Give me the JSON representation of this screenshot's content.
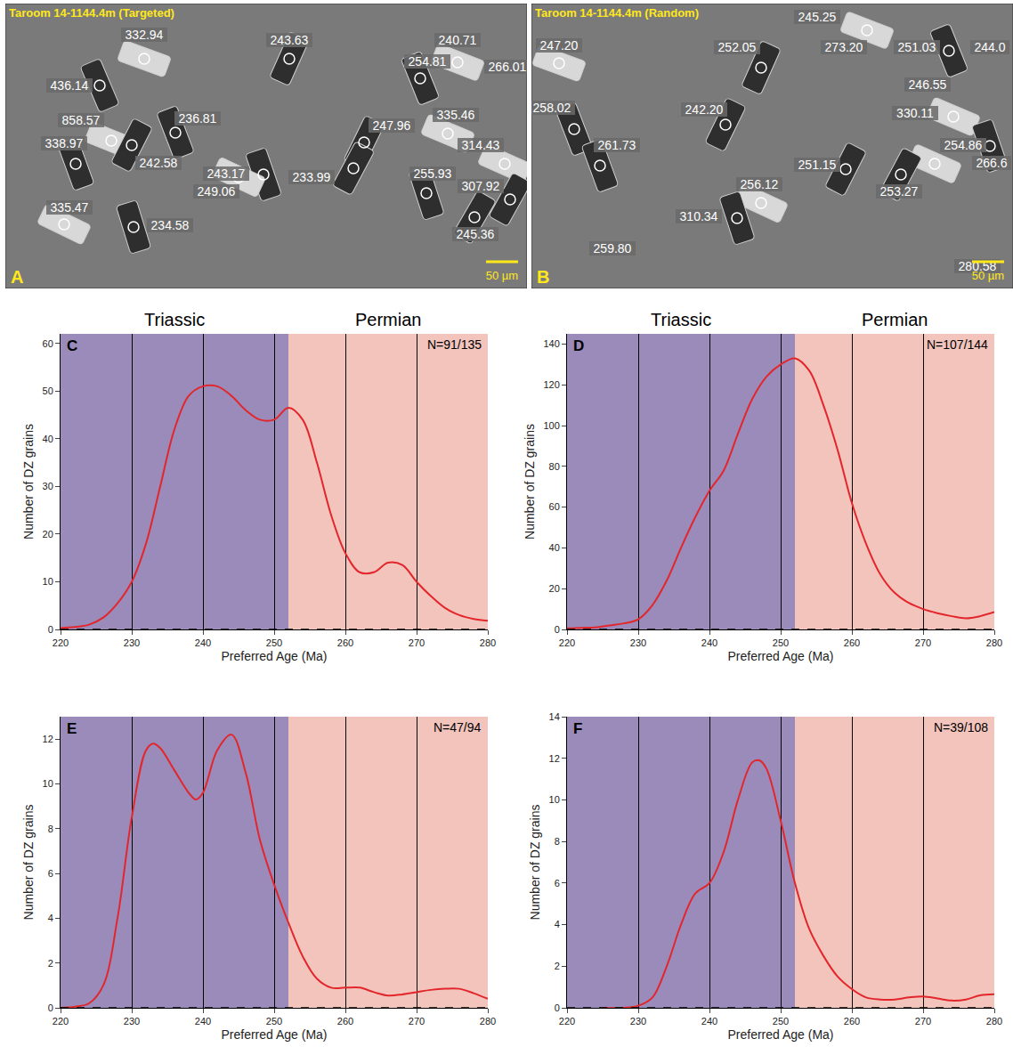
{
  "panels": [
    {
      "letter": "A",
      "title": "Taroom 14-1144.4m (Targeted)",
      "scale_bar": "50 µm",
      "labels": [
        "332.94",
        "436.14",
        "243.63",
        "240.71",
        "254.81",
        "266.01",
        "858.57",
        "236.81",
        "247.96",
        "335.46",
        "338.97",
        "242.58",
        "314.43",
        "243.17",
        "233.99",
        "249.06",
        "255.93",
        "307.92",
        "335.47",
        "234.58",
        "245.36"
      ]
    },
    {
      "letter": "B",
      "title": "Taroom 14-1144.4m (Random)",
      "scale_bar": "50 µm",
      "labels": [
        "247.20",
        "245.25",
        "252.05",
        "273.20",
        "251.03",
        "244.0",
        "246.55",
        "258.02",
        "242.20",
        "330.11",
        "261.73",
        "251.15",
        "254.86",
        "266.6",
        "253.27",
        "256.12",
        "310.34",
        "259.80",
        "280.58"
      ]
    }
  ],
  "chart_data": [
    {
      "type": "line",
      "letter": "C",
      "annotation": "N=91/135",
      "color": "#e3262b",
      "xlabel": "Preferred Age (Ma)",
      "ylabel": "Number of DZ grains",
      "x": [
        220,
        222,
        224,
        226,
        228,
        230,
        232,
        234,
        236,
        238,
        240,
        242,
        244,
        246,
        248,
        250,
        252,
        254,
        256,
        258,
        260,
        262,
        264,
        266,
        268,
        270,
        272,
        274,
        276,
        278,
        280
      ],
      "values": [
        0.3,
        0.5,
        1,
        2.5,
        5.5,
        10,
        18,
        30,
        42,
        49,
        51,
        51,
        49,
        46,
        44,
        44,
        46.5,
        44,
        35,
        24,
        16,
        12,
        12,
        14,
        13.5,
        10,
        7,
        4.5,
        3,
        2.2,
        1.8
      ],
      "xlim": [
        220,
        280
      ],
      "xticks": [
        220,
        230,
        240,
        250,
        260,
        270,
        280
      ],
      "ylim": [
        0,
        62
      ],
      "yticks": [
        0,
        10,
        20,
        30,
        40,
        50,
        60
      ],
      "grid": "x",
      "periods": [
        {
          "name": "Triassic",
          "from": 220,
          "to": 252,
          "color": "#9a8bbb"
        },
        {
          "name": "Permian",
          "from": 252,
          "to": 280,
          "color": "#f2c4bc"
        }
      ]
    },
    {
      "type": "line",
      "letter": "D",
      "annotation": "N=107/144",
      "color": "#e3262b",
      "xlabel": "Preferred Age (Ma)",
      "ylabel": "Number of DZ grains",
      "x": [
        220,
        222,
        224,
        226,
        228,
        230,
        232,
        234,
        236,
        238,
        240,
        242,
        244,
        246,
        248,
        250,
        252,
        254,
        256,
        258,
        260,
        262,
        264,
        266,
        268,
        270,
        272,
        274,
        276,
        278,
        280
      ],
      "values": [
        0.5,
        0.8,
        1,
        2,
        3,
        5,
        12,
        24,
        40,
        55,
        68,
        78,
        96,
        113,
        124,
        130,
        133,
        127,
        110,
        88,
        62,
        42,
        27,
        18,
        13,
        10,
        8,
        6.5,
        5.5,
        6.5,
        8.5
      ],
      "xlim": [
        220,
        280
      ],
      "xticks": [
        220,
        230,
        240,
        250,
        260,
        270,
        280
      ],
      "ylim": [
        0,
        145
      ],
      "yticks": [
        0,
        20,
        40,
        60,
        80,
        100,
        120,
        140
      ],
      "grid": "x",
      "periods": [
        {
          "name": "Triassic",
          "from": 220,
          "to": 252,
          "color": "#9a8bbb"
        },
        {
          "name": "Permian",
          "from": 252,
          "to": 280,
          "color": "#f2c4bc"
        }
      ]
    },
    {
      "type": "line",
      "letter": "E",
      "annotation": "N=47/94",
      "color": "#e3262b",
      "xlabel": "Preferred Age (Ma)",
      "ylabel": "Number of DZ grains",
      "x": [
        220,
        222,
        224,
        226,
        228,
        230,
        232,
        233,
        234,
        236,
        238,
        239,
        240,
        242,
        244,
        246,
        248,
        250,
        252,
        254,
        256,
        258,
        260,
        262,
        264,
        266,
        268,
        270,
        272,
        274,
        276,
        278,
        280
      ],
      "values": [
        0,
        0.05,
        0.2,
        1,
        4,
        8.5,
        11.5,
        11.8,
        11.6,
        10.6,
        9.6,
        9.3,
        9.6,
        11.5,
        12.2,
        10.5,
        7.5,
        5.5,
        3.8,
        2.3,
        1.3,
        0.9,
        0.9,
        0.9,
        0.7,
        0.55,
        0.6,
        0.7,
        0.8,
        0.85,
        0.85,
        0.65,
        0.4
      ],
      "xlim": [
        220,
        280
      ],
      "xticks": [
        220,
        230,
        240,
        250,
        260,
        270,
        280
      ],
      "ylim": [
        0,
        13
      ],
      "yticks": [
        0,
        2,
        4,
        6,
        8,
        10,
        12
      ],
      "grid": "x",
      "periods": [
        {
          "from": 220,
          "to": 252,
          "color": "#9a8bbb"
        },
        {
          "from": 252,
          "to": 280,
          "color": "#f2c4bc"
        }
      ]
    },
    {
      "type": "line",
      "letter": "F",
      "annotation": "N=39/108",
      "color": "#e3262b",
      "xlabel": "Preferred Age (Ma)",
      "ylabel": "Number of DZ grains",
      "x": [
        225,
        228,
        230,
        232,
        234,
        236,
        238,
        240,
        242,
        244,
        246,
        247,
        248,
        250,
        252,
        254,
        256,
        258,
        260,
        262,
        264,
        266,
        268,
        270,
        272,
        274,
        276,
        278,
        280
      ],
      "values": [
        0,
        0,
        0.1,
        0.5,
        2,
        4,
        5.5,
        6,
        7.5,
        10,
        11.8,
        11.9,
        11.5,
        9,
        6,
        3.8,
        2.5,
        1.5,
        0.9,
        0.5,
        0.4,
        0.4,
        0.5,
        0.55,
        0.45,
        0.35,
        0.4,
        0.6,
        0.65
      ],
      "xlim": [
        220,
        280
      ],
      "xticks": [
        220,
        230,
        240,
        250,
        260,
        270,
        280
      ],
      "ylim": [
        0,
        14
      ],
      "yticks": [
        0,
        2,
        4,
        6,
        8,
        10,
        12,
        14
      ],
      "grid": "x",
      "periods": [
        {
          "from": 220,
          "to": 252,
          "color": "#9a8bbb"
        },
        {
          "from": 252,
          "to": 280,
          "color": "#f2c4bc"
        }
      ]
    }
  ]
}
